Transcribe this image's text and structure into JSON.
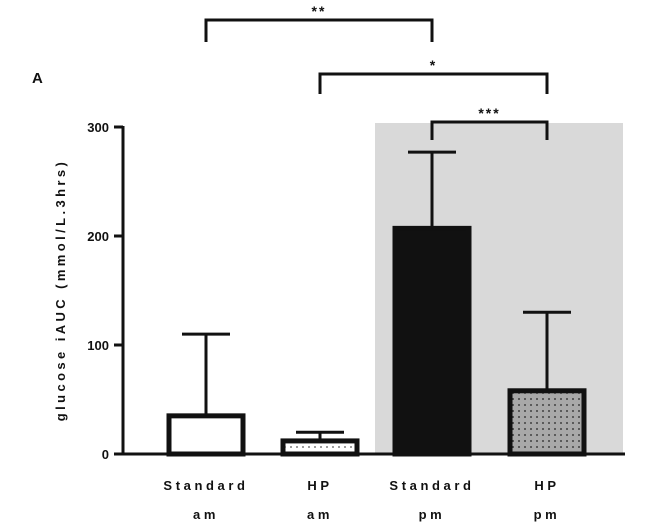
{
  "panel_label": "A",
  "chart_data": {
    "type": "bar",
    "title": "",
    "ylabel": "glucose iAUC (mmol/L.3hrs)",
    "xlabel": "",
    "ylim": [
      0,
      300
    ],
    "yticks": [
      0,
      100,
      200,
      300
    ],
    "grid": false,
    "legend": "none",
    "categories": [
      {
        "line1": "Standard",
        "line2": "am"
      },
      {
        "line1": "HP",
        "line2": "am"
      },
      {
        "line1": "Standard",
        "line2": "pm"
      },
      {
        "line1": "HP",
        "line2": "pm"
      }
    ],
    "values": [
      35,
      12,
      207,
      58
    ],
    "error_upper": [
      110,
      20,
      277,
      130
    ],
    "bar_fills": [
      "white",
      "white-dotted",
      "black",
      "gray-dotted"
    ],
    "shaded_groups": [
      2,
      3
    ],
    "shade_color": "#d9d9d9",
    "significance": [
      {
        "from": 0,
        "to": 2,
        "label": "**"
      },
      {
        "from": 1,
        "to": 3,
        "label": "*"
      },
      {
        "from": 2,
        "to": 3,
        "label": "***"
      }
    ]
  }
}
